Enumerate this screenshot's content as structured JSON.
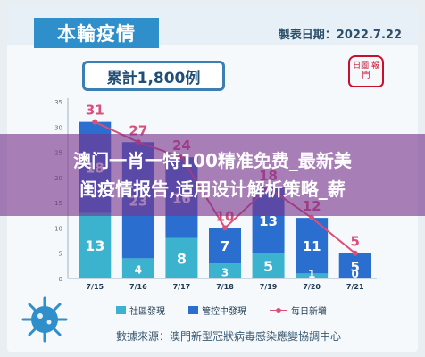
{
  "header": {
    "title": "本輪疫情",
    "date_label": "製表日期：2022.7.22"
  },
  "cumulative": {
    "label": "累計1,800例"
  },
  "seal": {
    "text": "日圖 報門"
  },
  "legend": [
    {
      "label": "社區發現",
      "color": "#3bb3cf"
    },
    {
      "label": "管控中發現",
      "color": "#2a6fcf"
    },
    {
      "label": "每日新增",
      "color": "#d9507a"
    }
  ],
  "source": {
    "text": "數據來源：澳門新型冠狀病毒感染應變協調中心"
  },
  "banner": {
    "line1": "澳门一肖一特100精准免费_最新美",
    "line2": "闺疫情报告,适用设计解析策略_薪"
  },
  "chart_data": {
    "type": "bar",
    "categories": [
      "7/15",
      "7/16",
      "7/17",
      "7/18",
      "7/19",
      "7/20",
      "7/21"
    ],
    "series": [
      {
        "name": "社區發現",
        "values": [
          13,
          4,
          8,
          3,
          5,
          1,
          0
        ],
        "color": "#3bb3cf"
      },
      {
        "name": "管控中發現",
        "values": [
          18,
          23,
          16,
          7,
          13,
          11,
          5
        ],
        "color": "#2a6fcf"
      },
      {
        "name": "每日新增",
        "type": "line",
        "values": [
          31,
          27,
          24,
          10,
          18,
          12,
          5
        ],
        "color": "#d9507a"
      }
    ],
    "yticks": [
      0,
      5,
      10,
      15,
      20,
      25,
      30,
      35
    ],
    "ylim": [
      0,
      35
    ],
    "grid": false,
    "legend_position": "bottom"
  }
}
